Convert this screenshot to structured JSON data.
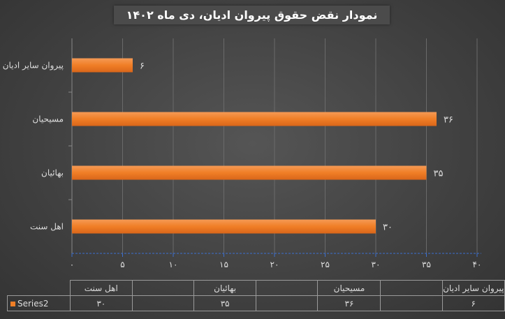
{
  "chart_data": {
    "type": "bar",
    "orientation": "horizontal",
    "title": "نمودار نقض حقوق پیروان ادیان، دی ماه ۱۴۰۲",
    "categories": [
      "پیروان سایر ادیان",
      "مسیحیان",
      "بهائیان",
      "اهل سنت"
    ],
    "series": [
      {
        "name": "Series2",
        "values": [
          6,
          36,
          35,
          30
        ],
        "labels": [
          "۶",
          "۳۶",
          "۳۵",
          "۳۰"
        ],
        "color": "#f07e26"
      }
    ],
    "xlim": [
      0,
      40
    ],
    "xticks": [
      0,
      5,
      10,
      15,
      20,
      25,
      30,
      35,
      40
    ],
    "xtick_labels": [
      "۰",
      "۵",
      "۱۰",
      "۱۵",
      "۲۰",
      "۲۵",
      "۳۰",
      "۳۵",
      "۴۰"
    ],
    "grid": true,
    "data_table": true
  }
}
